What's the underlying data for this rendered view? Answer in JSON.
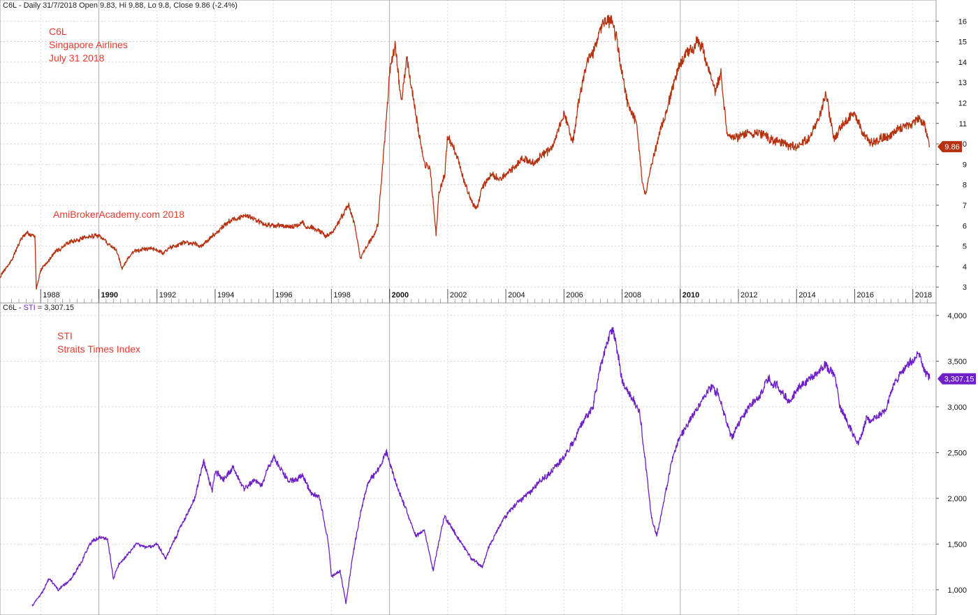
{
  "chart_data": [
    {
      "type": "line",
      "header": {
        "symbol": "C6L",
        "info": "Daily 31/7/2018 Open 9.83, Hi 9.88, Lo 9.8, Close 9.86 (-2.4%)"
      },
      "annotations": {
        "title_lines": [
          "C6L",
          "Singapore Airlines",
          "July 31 2018"
        ],
        "watermark": "AmiBrokerAcademy.com  2018"
      },
      "series": [
        {
          "color": "#b5310f",
          "x": [
            1986.6,
            1987.0,
            1987.3,
            1987.5,
            1987.8,
            1987.85,
            1988.0,
            1988.5,
            1989.0,
            1989.5,
            1990.0,
            1990.2,
            1990.4,
            1990.6,
            1990.8,
            1991.2,
            1991.8,
            1992.2,
            1992.6,
            1993.0,
            1993.5,
            1994.0,
            1994.5,
            1995.0,
            1995.5,
            1996.0,
            1996.5,
            1997.0,
            1997.5,
            1997.8,
            1998.0,
            1998.3,
            1998.6,
            1998.8,
            1999.0,
            1999.3,
            1999.6,
            1999.8,
            1999.9,
            2000.0,
            2000.2,
            2000.4,
            2000.6,
            2000.8,
            2001.0,
            2001.2,
            2001.4,
            2001.6,
            2001.7,
            2001.9,
            2002.0,
            2002.3,
            2002.6,
            2002.9,
            2003.0,
            2003.2,
            2003.5,
            2003.8,
            2004.0,
            2004.3,
            2004.6,
            2005.0,
            2005.3,
            2005.6,
            2006.0,
            2006.3,
            2006.5,
            2006.8,
            2007.0,
            2007.3,
            2007.6,
            2007.8,
            2008.0,
            2008.2,
            2008.5,
            2008.7,
            2008.8,
            2009.0,
            2009.2,
            2009.5,
            2009.8,
            2010.0,
            2010.3,
            2010.6,
            2010.8,
            2011.0,
            2011.2,
            2011.4,
            2011.6,
            2012.0,
            2012.5,
            2013.0,
            2013.5,
            2014.0,
            2014.5,
            2014.8,
            2015.0,
            2015.3,
            2015.6,
            2016.0,
            2016.3,
            2016.6,
            2017.0,
            2017.5,
            2018.0,
            2018.2,
            2018.4,
            2018.58
          ],
          "values": [
            3.5,
            4.3,
            5.3,
            5.6,
            5.5,
            2.9,
            3.8,
            4.7,
            5.2,
            5.4,
            5.5,
            5.3,
            5.0,
            4.8,
            3.9,
            4.8,
            4.9,
            4.7,
            5.0,
            5.2,
            5.0,
            5.6,
            6.2,
            6.5,
            6.2,
            6.0,
            5.9,
            6.1,
            5.8,
            5.5,
            5.6,
            6.3,
            7.0,
            6.0,
            4.4,
            5.2,
            6.0,
            9.5,
            11.5,
            13.5,
            14.8,
            12.0,
            14.2,
            12.5,
            10.5,
            9.0,
            8.8,
            5.6,
            7.5,
            8.5,
            10.5,
            9.5,
            8.0,
            7.0,
            6.8,
            8.0,
            8.5,
            8.3,
            8.5,
            8.9,
            9.3,
            9.1,
            9.5,
            9.8,
            11.5,
            10.0,
            12.0,
            14.0,
            14.5,
            15.8,
            16.0,
            15.2,
            13.5,
            12.0,
            11.0,
            8.0,
            7.6,
            9.0,
            10.0,
            11.5,
            13.0,
            14.0,
            14.5,
            15.0,
            14.5,
            13.5,
            12.5,
            13.5,
            10.5,
            10.3,
            10.6,
            10.3,
            10.0,
            9.8,
            10.3,
            11.5,
            12.5,
            10.2,
            11.0,
            11.5,
            10.5,
            10.0,
            10.3,
            10.7,
            11.0,
            11.3,
            11.0,
            9.86
          ]
        }
      ],
      "xlim": [
        1986.6,
        2018.8
      ],
      "ylim": [
        2.7,
        16.35
      ],
      "y_ticks": [
        "3",
        "4",
        "5",
        "6",
        "7",
        "8",
        "9",
        "10",
        "11",
        "12",
        "13",
        "14",
        "15",
        "16"
      ],
      "x_ticks": [
        "1988",
        "1990",
        "1992",
        "1994",
        "1996",
        "1998",
        "2000",
        "2002",
        "2004",
        "2006",
        "2008",
        "2010",
        "2012",
        "2014",
        "2016",
        "2018"
      ],
      "x_ticks_bold": [
        "1990",
        "2000",
        "2010"
      ],
      "last_value_label": "9.86",
      "grid": true
    },
    {
      "type": "line",
      "header": {
        "symbol": "C6L",
        "series_name": "STI",
        "value": "= 3,307.15"
      },
      "annotations": {
        "title_lines": [
          "STI",
          "Straits Times Index"
        ]
      },
      "series": [
        {
          "color": "#6f1fc6",
          "x": [
            1987.7,
            1988.0,
            1988.3,
            1988.6,
            1989.0,
            1989.4,
            1989.7,
            1990.0,
            1990.3,
            1990.5,
            1990.7,
            1991.0,
            1991.3,
            1991.6,
            1992.0,
            1992.3,
            1992.6,
            1993.0,
            1993.3,
            1993.6,
            1993.9,
            1994.0,
            1994.3,
            1994.6,
            1995.0,
            1995.3,
            1995.6,
            1996.0,
            1996.2,
            1996.5,
            1996.8,
            1997.0,
            1997.3,
            1997.6,
            1997.9,
            1998.0,
            1998.3,
            1998.5,
            1998.7,
            1999.0,
            1999.3,
            1999.6,
            1999.9,
            2000.0,
            2000.3,
            2000.6,
            2000.9,
            2001.2,
            2001.5,
            2001.7,
            2001.9,
            2002.2,
            2002.5,
            2002.8,
            2003.2,
            2003.4,
            2003.7,
            2004.0,
            2004.4,
            2004.8,
            2005.2,
            2005.6,
            2006.0,
            2006.3,
            2006.6,
            2007.0,
            2007.3,
            2007.5,
            2007.7,
            2008.0,
            2008.3,
            2008.6,
            2008.8,
            2009.0,
            2009.2,
            2009.4,
            2009.7,
            2010.0,
            2010.4,
            2010.8,
            2011.0,
            2011.3,
            2011.6,
            2011.8,
            2012.0,
            2012.4,
            2012.8,
            2013.0,
            2013.4,
            2013.8,
            2014.0,
            2014.4,
            2014.8,
            2015.0,
            2015.3,
            2015.5,
            2015.8,
            2016.1,
            2016.4,
            2016.7,
            2017.0,
            2017.3,
            2017.6,
            2018.0,
            2018.2,
            2018.4,
            2018.58
          ],
          "values": [
            820,
            950,
            1120,
            1000,
            1100,
            1300,
            1500,
            1580,
            1550,
            1130,
            1300,
            1380,
            1500,
            1450,
            1500,
            1350,
            1550,
            1800,
            2000,
            2400,
            2100,
            2300,
            2200,
            2350,
            2100,
            2200,
            2150,
            2450,
            2350,
            2200,
            2200,
            2250,
            2050,
            2000,
            1500,
            1150,
            1200,
            850,
            1300,
            1850,
            2200,
            2300,
            2500,
            2400,
            2100,
            1850,
            1600,
            1650,
            1200,
            1550,
            1800,
            1650,
            1500,
            1350,
            1250,
            1450,
            1650,
            1800,
            1950,
            2050,
            2200,
            2300,
            2450,
            2600,
            2800,
            3000,
            3500,
            3700,
            3850,
            3300,
            3100,
            2950,
            2400,
            1800,
            1600,
            1900,
            2400,
            2700,
            2900,
            3100,
            3200,
            3150,
            2800,
            2650,
            2800,
            3000,
            3150,
            3300,
            3200,
            3050,
            3200,
            3300,
            3400,
            3450,
            3350,
            3000,
            2800,
            2600,
            2850,
            2850,
            2950,
            3200,
            3350,
            3500,
            3600,
            3400,
            3307.15
          ]
        }
      ],
      "xlim": [
        1986.6,
        2018.8
      ],
      "ylim": [
        770,
        4060
      ],
      "y_ticks": [
        "1,000",
        "1,500",
        "2,000",
        "2,500",
        "3,000",
        "3,500",
        "4,000"
      ],
      "last_value_label": "3,307.15",
      "grid": true
    }
  ]
}
